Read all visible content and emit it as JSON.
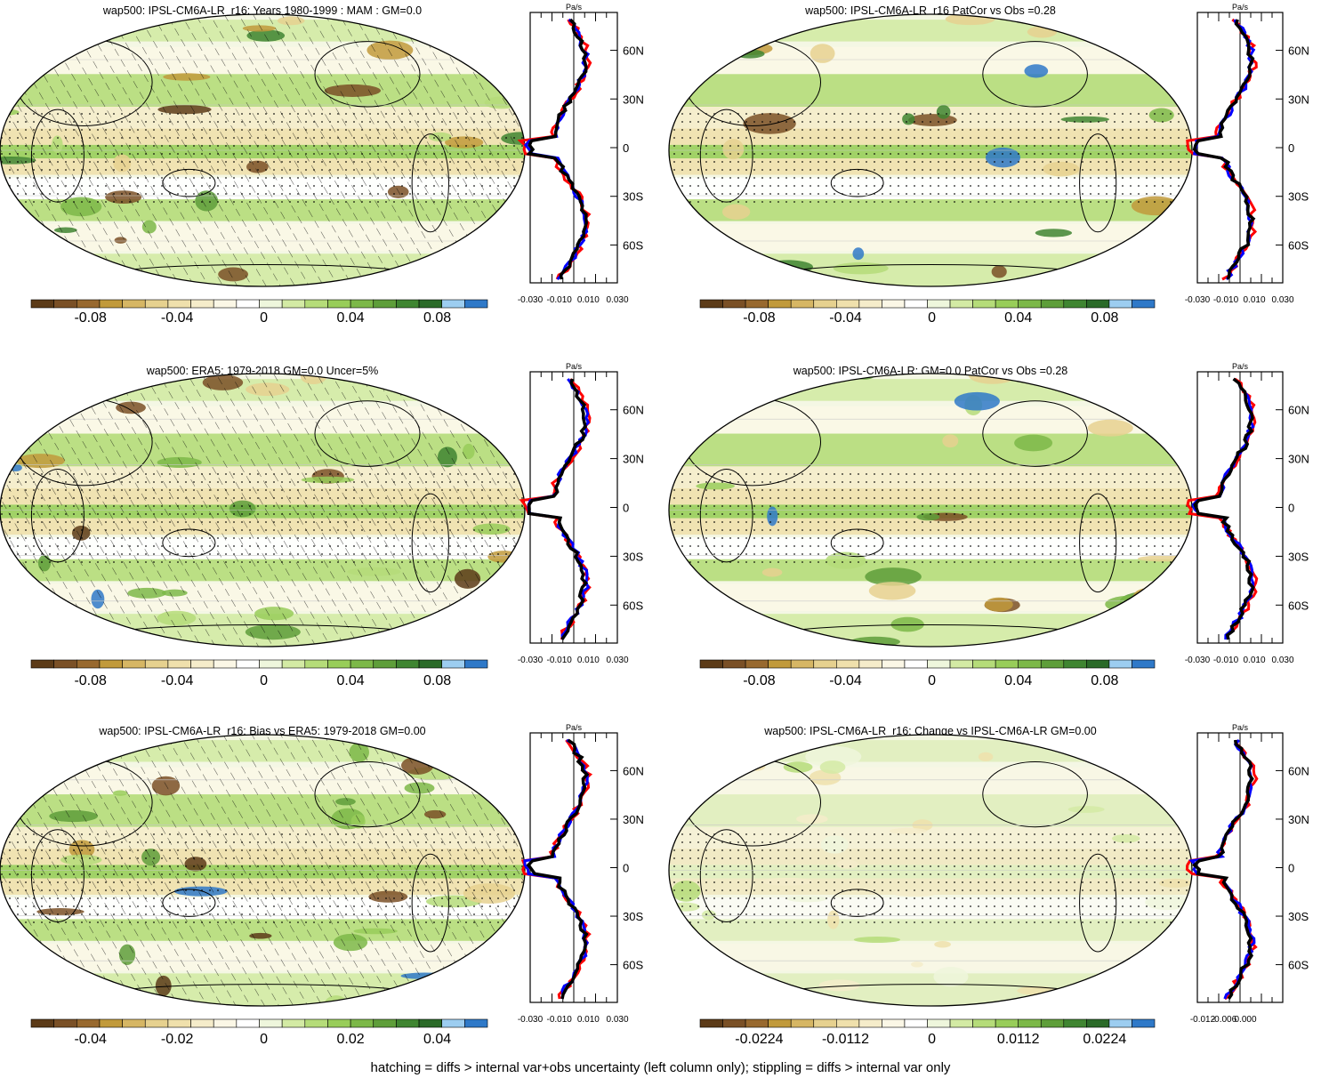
{
  "colors": {
    "palette": [
      "#5c3b18",
      "#7a5026",
      "#98692f",
      "#c19a3b",
      "#d6b664",
      "#e6d18f",
      "#efe0ac",
      "#f5ecca",
      "#fbf7e6",
      "#ffffff",
      "#eef6dc",
      "#d3eaa4",
      "#b5dc79",
      "#98cd59",
      "#7cb848",
      "#5e9e3a",
      "#3f8531",
      "#2a6a28",
      "#9ccdf0",
      "#2f79c8"
    ],
    "model_line": "#000000",
    "obs_line": "#0000ff",
    "bias_line": "#ff0000",
    "land_tint": "#e9f1c8"
  },
  "footer": "hatching = diffs > internal var+obs uncertainty (left column only); stippling = diffs > internal var only",
  "panels": [
    {
      "title": "wap500: IPSL-CM6A-LR_r16: Years 1980-1999 : MAM : GM=0.0",
      "colorbar_labels": [
        "-0.08",
        "-0.04",
        "0",
        "0.04",
        "0.08"
      ],
      "profile_unit": "Pa/s",
      "profile_x_labels": [
        "-0.030",
        "-0.010",
        "0.010",
        "0.030"
      ],
      "lat_labels": [
        "60N",
        "30N",
        "0",
        "30S",
        "60S"
      ],
      "hatched": true,
      "stippled": true
    },
    {
      "title": "wap500: IPSL-CM6A-LR_r16 PatCor vs Obs =0.28",
      "colorbar_labels": [
        "-0.08",
        "-0.04",
        "0",
        "0.04",
        "0.08"
      ],
      "profile_unit": "Pa/s",
      "profile_x_labels": [
        "-0.030",
        "-0.010",
        "0.010",
        "0.030"
      ],
      "lat_labels": [
        "60N",
        "30N",
        "0",
        "30S",
        "60S"
      ],
      "hatched": false,
      "stippled": true
    },
    {
      "title": "wap500: ERA5: 1979-2018 GM=0.0 Uncer=5%",
      "colorbar_labels": [
        "-0.08",
        "-0.04",
        "0",
        "0.04",
        "0.08"
      ],
      "profile_unit": "Pa/s",
      "profile_x_labels": [
        "-0.030",
        "-0.010",
        "0.010",
        "0.030"
      ],
      "lat_labels": [
        "60N",
        "30N",
        "0",
        "30S",
        "60S"
      ],
      "hatched": true,
      "stippled": true
    },
    {
      "title": "wap500: IPSL-CM6A-LR: GM=0.0 PatCor vs Obs =0.28",
      "colorbar_labels": [
        "-0.08",
        "-0.04",
        "0",
        "0.04",
        "0.08"
      ],
      "profile_unit": "Pa/s",
      "profile_x_labels": [
        "-0.030",
        "-0.010",
        "0.010",
        "0.030"
      ],
      "lat_labels": [
        "60N",
        "30N",
        "0",
        "30S",
        "60S"
      ],
      "hatched": false,
      "stippled": true
    },
    {
      "title": "wap500: IPSL-CM6A-LR_r16: Bias vs ERA5: 1979-2018 GM=0.00",
      "colorbar_labels": [
        "-0.04",
        "-0.02",
        "0",
        "0.02",
        "0.04"
      ],
      "profile_unit": "Pa/s",
      "profile_x_labels": [
        "-0.030",
        "-0.010",
        "0.010",
        "0.030"
      ],
      "lat_labels": [
        "60N",
        "30N",
        "0",
        "30S",
        "60S"
      ],
      "hatched": true,
      "stippled": true
    },
    {
      "title": "wap500: IPSL-CM6A-LR_r16: Change vs IPSL-CM6A-LR GM=0.00",
      "colorbar_labels": [
        "-0.0224",
        "-0.0112",
        "0",
        "0.0112",
        "0.0224"
      ],
      "profile_unit": "Pa/s",
      "profile_x_labels": [
        "-0.012",
        "-0.006",
        "0.000"
      ],
      "lat_labels": [
        "60N",
        "30N",
        "0",
        "30S",
        "60S"
      ],
      "hatched": false,
      "stippled": true
    }
  ]
}
